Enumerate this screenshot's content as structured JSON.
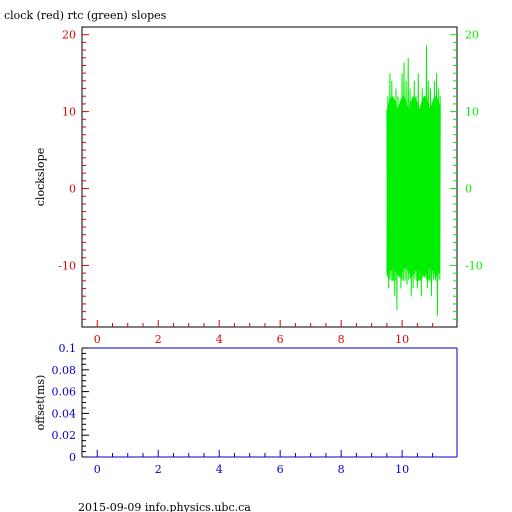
{
  "title": "clock (red) rtc (green) slopes",
  "footer": "2015-09-09 info.physics.ubc.ca",
  "colors": {
    "red": "#e00000",
    "green": "#00ee00",
    "blue": "#0000cc",
    "axis": "#000000"
  },
  "chart_data": [
    {
      "type": "line",
      "title": "clock (red) rtc (green) slopes",
      "ylabel": "clockslope",
      "xlim": [
        -0.5,
        11.8
      ],
      "ylim": [
        -18,
        21
      ],
      "x_ticks": [
        "0",
        "2",
        "4",
        "6",
        "8",
        "10"
      ],
      "y_ticks_left": [
        "20",
        "10",
        "0",
        "-10"
      ],
      "y_ticks_right": [
        "20",
        "10",
        "0",
        "-10"
      ],
      "series": [
        {
          "color": "#00ee00",
          "x_range": [
            9.5,
            11.25
          ],
          "typical_range": [
            -12,
            12
          ],
          "extremes": [
            -16.5,
            18.6
          ],
          "points": [
            [
              9.5,
              -11
            ],
            [
              9.53,
              12
            ],
            [
              9.56,
              -13
            ],
            [
              9.6,
              15
            ],
            [
              9.63,
              -10
            ],
            [
              9.66,
              14
            ],
            [
              9.7,
              -12
            ],
            [
              9.73,
              11
            ],
            [
              9.76,
              -14
            ],
            [
              9.8,
              13
            ],
            [
              9.83,
              -15.8
            ],
            [
              9.86,
              12
            ],
            [
              9.9,
              -11
            ],
            [
              9.93,
              10
            ],
            [
              9.96,
              -13
            ],
            [
              10.0,
              15
            ],
            [
              10.03,
              -12
            ],
            [
              10.06,
              16.4
            ],
            [
              10.1,
              -11
            ],
            [
              10.13,
              14
            ],
            [
              10.16,
              -12.5
            ],
            [
              10.2,
              17
            ],
            [
              10.23,
              -10
            ],
            [
              10.26,
              13
            ],
            [
              10.3,
              -14
            ],
            [
              10.33,
              11
            ],
            [
              10.36,
              -13
            ],
            [
              10.4,
              14
            ],
            [
              10.43,
              -9
            ],
            [
              10.46,
              12
            ],
            [
              10.5,
              -13
            ],
            [
              10.53,
              15
            ],
            [
              10.56,
              -12
            ],
            [
              10.6,
              10
            ],
            [
              10.63,
              -14
            ],
            [
              10.66,
              13
            ],
            [
              10.7,
              -11
            ],
            [
              10.73,
              12
            ],
            [
              10.76,
              -10
            ],
            [
              10.8,
              18.6
            ],
            [
              10.83,
              -13
            ],
            [
              10.86,
              14
            ],
            [
              10.9,
              -12
            ],
            [
              10.93,
              13
            ],
            [
              10.96,
              -14
            ],
            [
              11.0,
              11
            ],
            [
              11.03,
              -11
            ],
            [
              11.06,
              14
            ],
            [
              11.1,
              -12
            ],
            [
              11.13,
              15
            ],
            [
              11.16,
              -16.5
            ],
            [
              11.2,
              13
            ],
            [
              11.23,
              -10
            ],
            [
              11.25,
              12
            ]
          ]
        }
      ]
    },
    {
      "type": "line",
      "ylabel": "offset(ms)",
      "xlim": [
        -0.5,
        11.8
      ],
      "ylim": [
        0,
        0.1
      ],
      "x_ticks": [
        "0",
        "2",
        "4",
        "6",
        "8",
        "10"
      ],
      "y_ticks": [
        "0.1",
        "0.08",
        "0.06",
        "0.04",
        "0.02",
        "0"
      ],
      "series": []
    }
  ]
}
